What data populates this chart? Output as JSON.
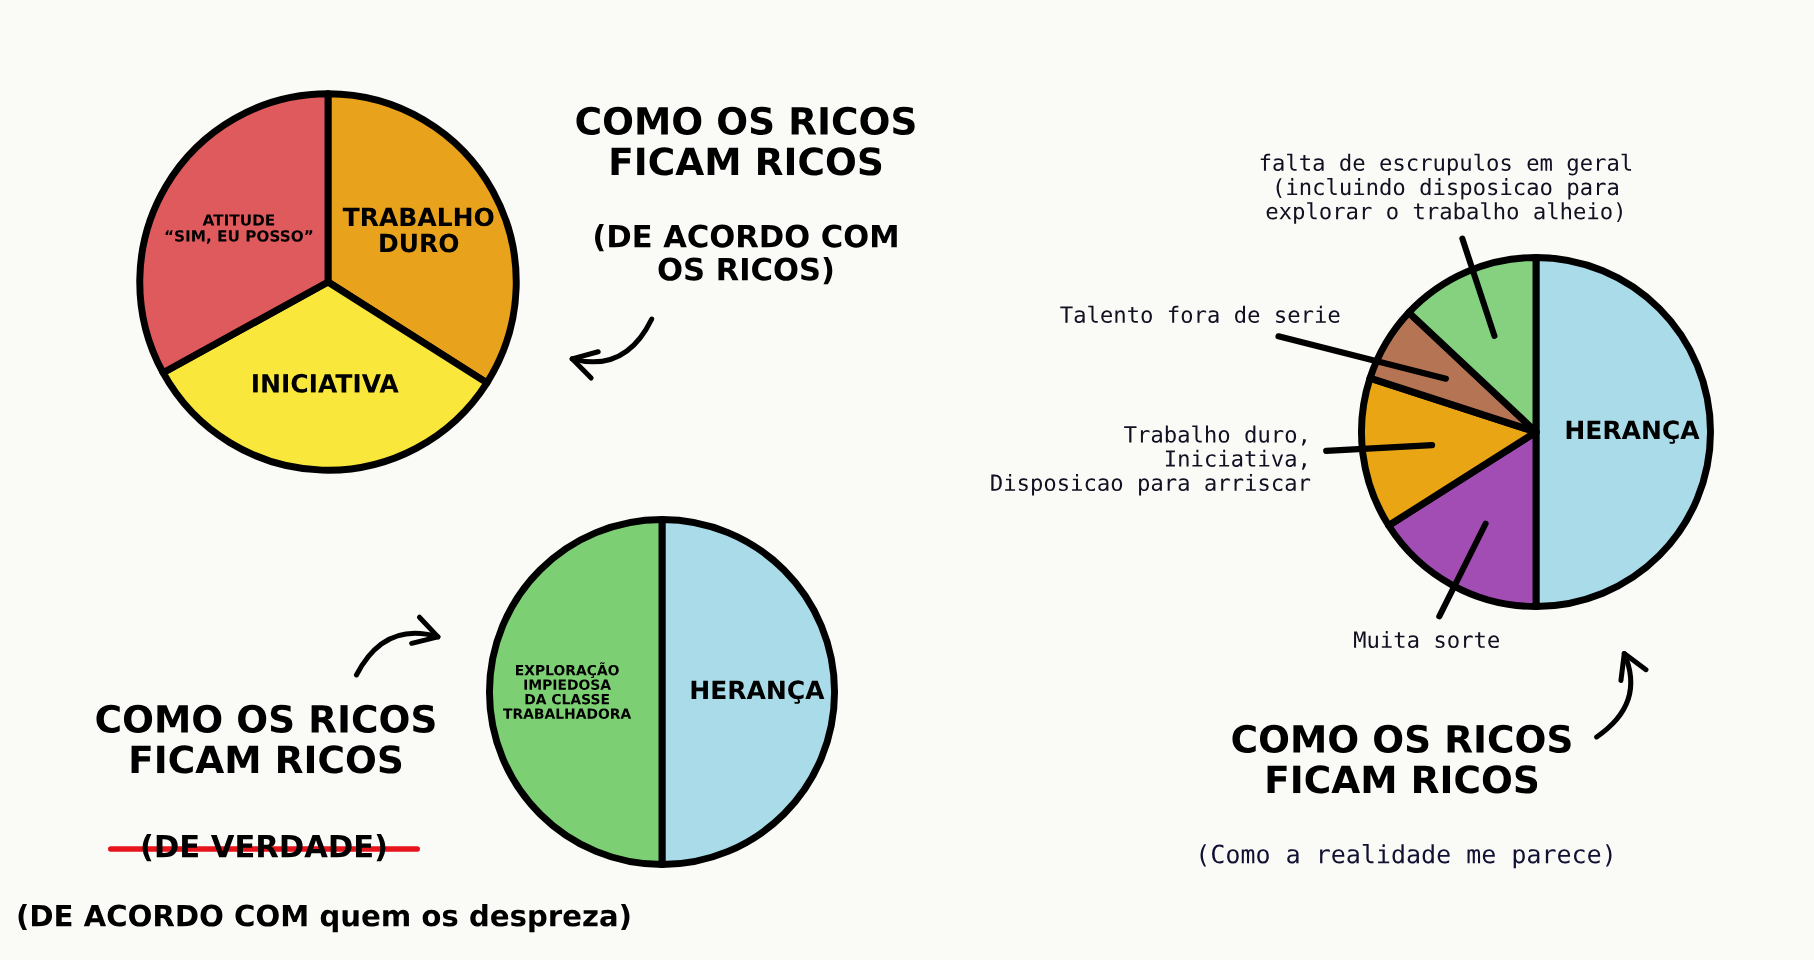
{
  "chart_data": [
    {
      "type": "pie",
      "title": "COMO OS RICOS\nFICAM RICOS",
      "subtitle": "(DE ACORDO COM\nOS RICOS)",
      "categories": [
        "TRABALHO\nDURO",
        "INICIATIVA",
        "ATITUDE\n“SIM, EU POSSO”"
      ],
      "values": [
        34,
        33,
        33
      ],
      "colors": [
        "#e8a21c",
        "#f9e73c",
        "#de5a5c"
      ]
    },
    {
      "type": "pie",
      "title": "COMO OS RICOS\nFICAM RICOS",
      "subtitle": "(DE VERDADE)",
      "annotations": [
        "(DE ACORDO COM quem os despreza)"
      ],
      "categories": [
        "HERANÇA",
        "EXPLORAÇÃO\nIMPIEDOSA\nDA CLASSE\nTRABALHADORA"
      ],
      "values": [
        50,
        50
      ],
      "colors": [
        "#a9dbe8",
        "#7dcf74"
      ]
    },
    {
      "type": "pie",
      "title": "COMO OS RICOS\nFICAM RICOS",
      "subtitle": "(Como a realidade me parece)",
      "categories": [
        "HERANÇA",
        "Muita sorte",
        "Trabalho duro,\nIniciativa,\nDisposicao para arriscar",
        "Talento fora de serie",
        "falta de escrupulos em geral\n(incluindo disposicao para\nexplorar o trabalho alheio)"
      ],
      "values": [
        50,
        16,
        14,
        7,
        13
      ],
      "colors": [
        "#a9dbe8",
        "#a24db3",
        "#e9a514",
        "#b57554",
        "#85d180"
      ]
    }
  ]
}
